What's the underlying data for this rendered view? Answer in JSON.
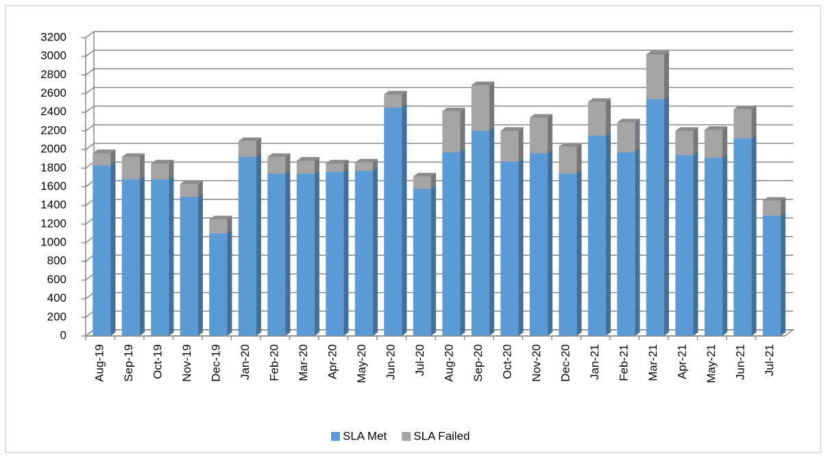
{
  "chart_data": {
    "type": "bar",
    "stacked": true,
    "categories": [
      "Aug-19",
      "Sep-19",
      "Oct-19",
      "Nov-19",
      "Dec-19",
      "Jan-20",
      "Feb-20",
      "Mar-20",
      "Apr-20",
      "May-20",
      "Jun-20",
      "Jul-20",
      "Aug-20",
      "Sep-20",
      "Oct-20",
      "Nov-20",
      "Dec-20",
      "Jan-21",
      "Feb-21",
      "Mar-21",
      "Apr-21",
      "May-21",
      "Jun-21",
      "Jul-21"
    ],
    "series": [
      {
        "name": "SLA Met",
        "color": "#5b9bd5",
        "values": [
          1830,
          1680,
          1680,
          1490,
          1100,
          1920,
          1740,
          1740,
          1760,
          1770,
          2450,
          1580,
          1970,
          2200,
          1870,
          1960,
          1740,
          2150,
          1970,
          2540,
          1940,
          1910,
          2120,
          1290
        ]
      },
      {
        "name": "SLA Failed",
        "color": "#a5a5a5",
        "values": [
          130,
          240,
          170,
          140,
          150,
          170,
          180,
          140,
          90,
          90,
          140,
          130,
          440,
          490,
          330,
          380,
          290,
          360,
          320,
          480,
          260,
          300,
          310,
          160
        ]
      }
    ],
    "ylim": [
      0,
      3200
    ],
    "yticks": [
      0,
      200,
      400,
      600,
      800,
      1000,
      1200,
      1400,
      1600,
      1800,
      2000,
      2200,
      2400,
      2600,
      2800,
      3000,
      3200
    ],
    "grid": true,
    "legend": "bottom"
  }
}
